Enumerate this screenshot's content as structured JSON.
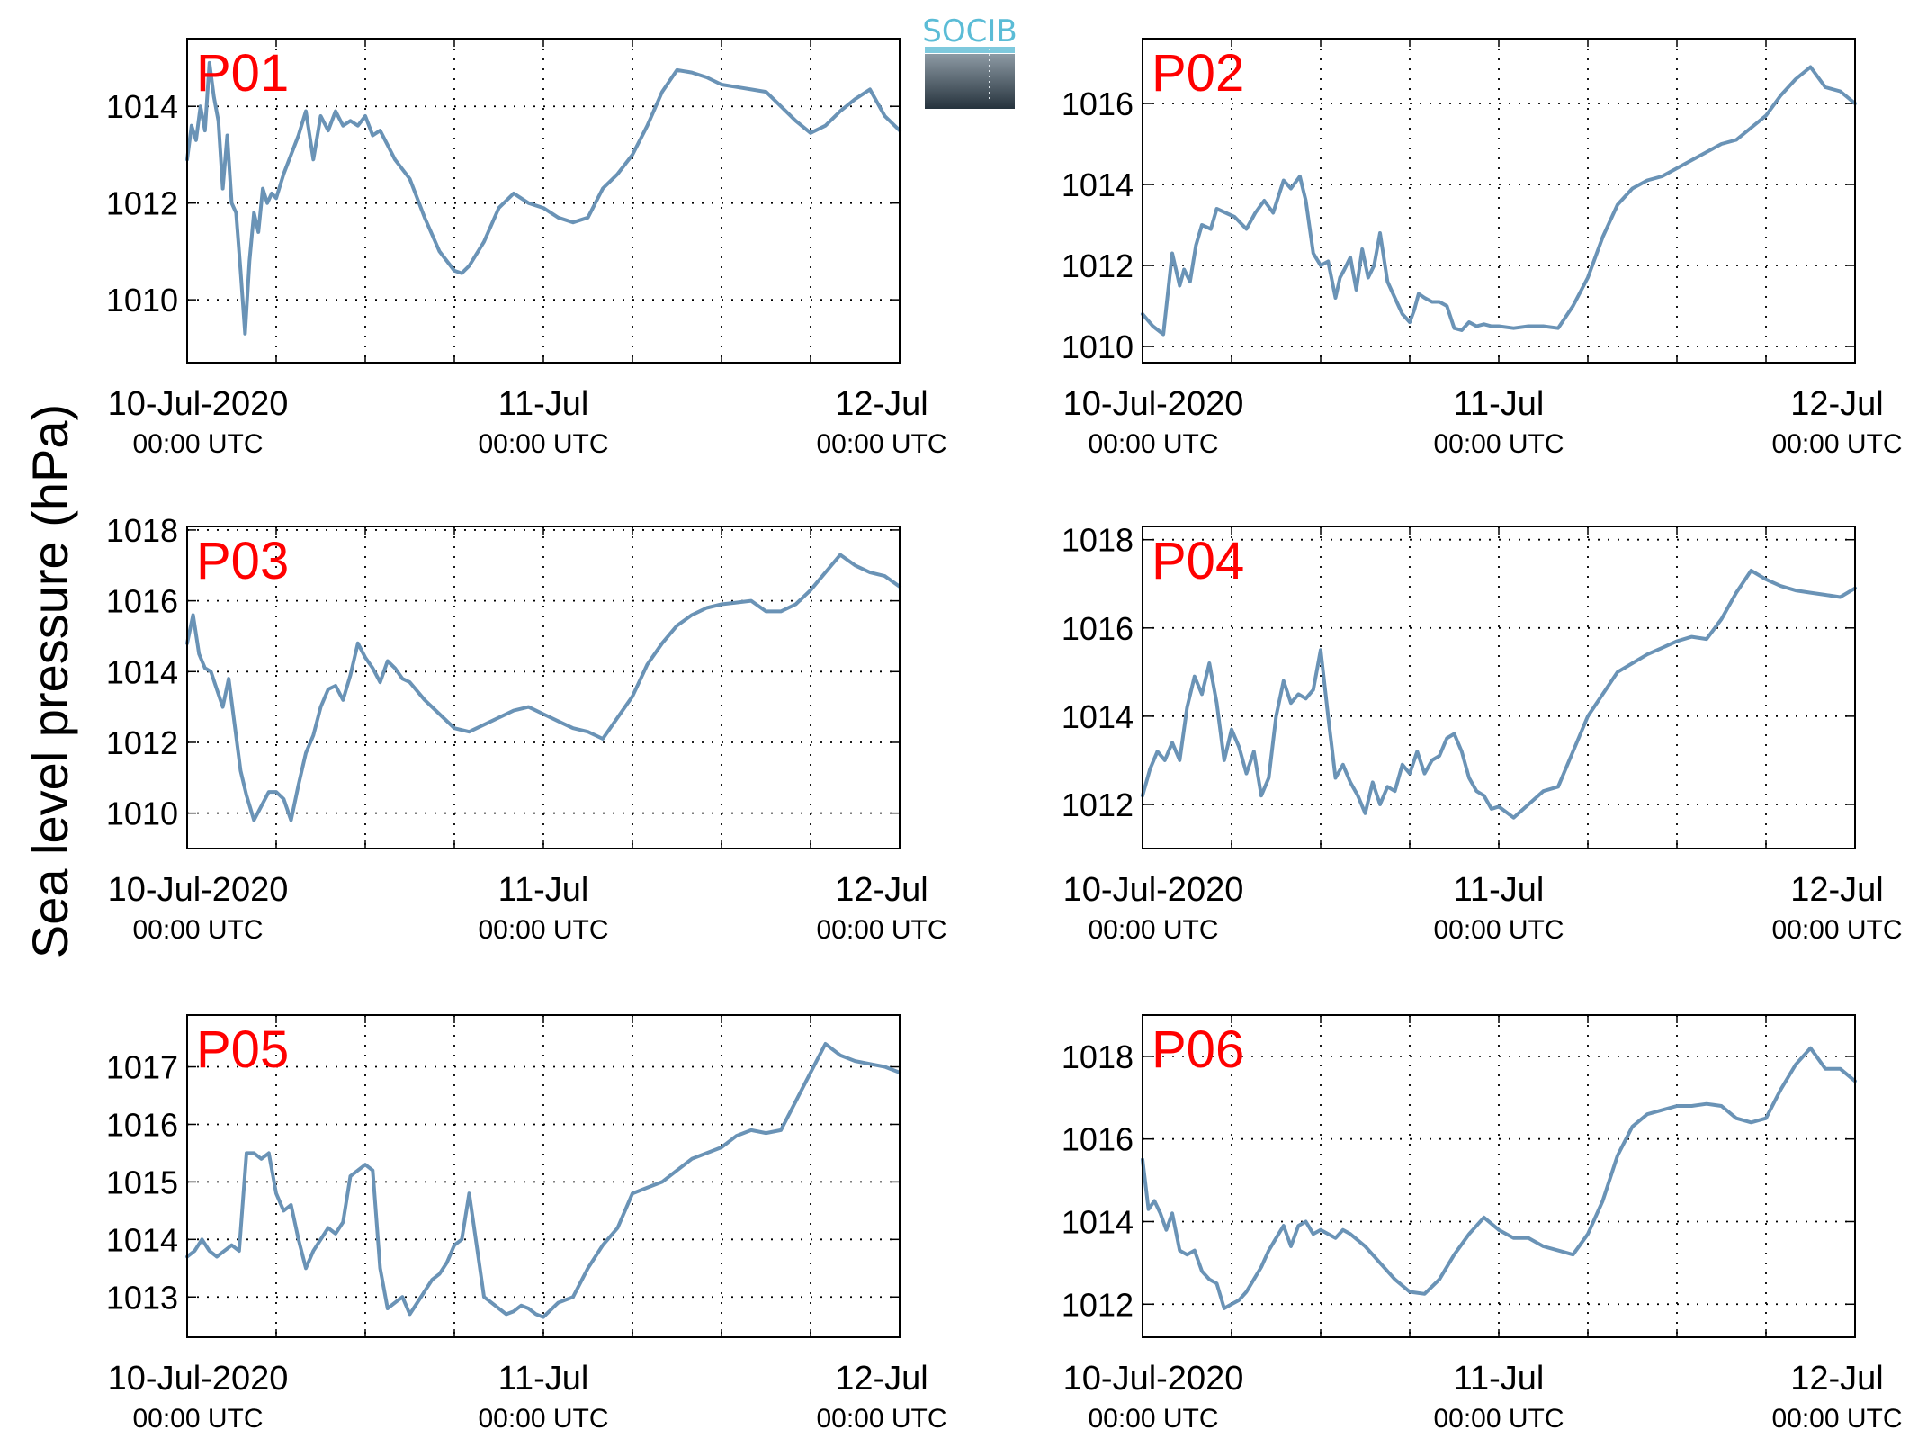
{
  "figure": {
    "ylabel": "Sea level pressure (hPa)",
    "logo_text": "SOCIB",
    "line_color": "#6a93b6",
    "panel_label_color": "#ff0000",
    "x_tick_labels": [
      {
        "date": "10-Jul-2020",
        "time": "00:00 UTC"
      },
      {
        "date": "11-Jul",
        "time": "00:00 UTC"
      },
      {
        "date": "12-Jul",
        "time": "00:00 UTC"
      }
    ]
  },
  "chart_data": [
    {
      "type": "line",
      "name": "P01",
      "x_unit": "hours since 10-Jul-2020 00:00 UTC",
      "xlim": [
        0,
        48
      ],
      "ylim": [
        1008.7,
        1015.4
      ],
      "yticks": [
        1010,
        1012,
        1014
      ],
      "x": [
        0,
        0.3,
        0.6,
        0.9,
        1.2,
        1.5,
        1.8,
        2.1,
        2.4,
        2.7,
        3.0,
        3.3,
        3.6,
        3.9,
        4.2,
        4.5,
        4.8,
        5.1,
        5.4,
        5.7,
        6.0,
        6.5,
        7.0,
        7.5,
        8.0,
        8.5,
        9.0,
        9.5,
        10.0,
        10.5,
        11.0,
        11.5,
        12.0,
        12.5,
        13.0,
        13.5,
        14.0,
        15.0,
        16.0,
        17.0,
        18.0,
        18.5,
        19.0,
        20.0,
        21.0,
        22.0,
        23.0,
        24.0,
        25.0,
        26.0,
        27.0,
        28.0,
        29.0,
        30.0,
        31.0,
        32.0,
        33.0,
        34.0,
        35.0,
        36.0,
        37.0,
        38.0,
        39.0,
        40.0,
        41.0,
        42.0,
        43.0,
        44.0,
        45.0,
        46.0,
        47.0,
        48.0
      ],
      "values": [
        1012.9,
        1013.6,
        1013.3,
        1014.0,
        1013.5,
        1014.9,
        1014.2,
        1013.7,
        1012.3,
        1013.4,
        1012.0,
        1011.8,
        1010.6,
        1009.3,
        1010.8,
        1011.8,
        1011.4,
        1012.3,
        1012.0,
        1012.2,
        1012.1,
        1012.6,
        1013.0,
        1013.4,
        1013.9,
        1012.9,
        1013.8,
        1013.5,
        1013.9,
        1013.6,
        1013.7,
        1013.6,
        1013.8,
        1013.4,
        1013.5,
        1013.2,
        1012.9,
        1012.5,
        1011.7,
        1011.0,
        1010.6,
        1010.55,
        1010.7,
        1011.2,
        1011.9,
        1012.2,
        1012.0,
        1011.9,
        1011.7,
        1011.6,
        1011.7,
        1012.3,
        1012.6,
        1013.0,
        1013.6,
        1014.3,
        1014.75,
        1014.7,
        1014.6,
        1014.45,
        1014.4,
        1014.35,
        1014.3,
        1014.0,
        1013.7,
        1013.45,
        1013.6,
        1013.9,
        1014.15,
        1014.35,
        1013.8,
        1013.5
      ]
    },
    {
      "type": "line",
      "name": "P02",
      "x_unit": "hours since 10-Jul-2020 00:00 UTC",
      "xlim": [
        0,
        48
      ],
      "ylim": [
        1009.6,
        1017.6
      ],
      "yticks": [
        1010,
        1012,
        1014,
        1016
      ],
      "x": [
        0,
        0.7,
        1.4,
        2.0,
        2.5,
        2.8,
        3.2,
        3.6,
        4.0,
        4.6,
        5.0,
        5.6,
        6.2,
        7.0,
        7.6,
        8.2,
        8.8,
        9.5,
        10.0,
        10.6,
        11.0,
        11.5,
        12.0,
        12.5,
        13.0,
        13.3,
        13.6,
        14.0,
        14.4,
        14.8,
        15.2,
        15.6,
        16.0,
        16.5,
        17.0,
        17.5,
        18.0,
        18.3,
        18.6,
        19.0,
        19.5,
        20.0,
        20.5,
        21.0,
        21.5,
        22.0,
        22.5,
        23.0,
        23.5,
        24.0,
        25.0,
        26.0,
        27.0,
        28.0,
        29.0,
        30.0,
        31.0,
        32.0,
        33.0,
        34.0,
        35.0,
        36.0,
        37.0,
        38.0,
        39.0,
        40.0,
        41.0,
        42.0,
        43.0,
        44.0,
        45.0,
        46.0,
        47.0,
        48.0
      ],
      "values": [
        1010.8,
        1010.5,
        1010.3,
        1012.3,
        1011.5,
        1011.9,
        1011.6,
        1012.5,
        1013.0,
        1012.9,
        1013.4,
        1013.3,
        1013.2,
        1012.9,
        1013.3,
        1013.6,
        1013.3,
        1014.1,
        1013.9,
        1014.2,
        1013.6,
        1012.3,
        1012.0,
        1012.1,
        1011.2,
        1011.7,
        1011.9,
        1012.2,
        1011.4,
        1012.4,
        1011.7,
        1012.0,
        1012.8,
        1011.6,
        1011.2,
        1010.8,
        1010.6,
        1010.9,
        1011.3,
        1011.2,
        1011.1,
        1011.1,
        1011.0,
        1010.45,
        1010.4,
        1010.6,
        1010.5,
        1010.55,
        1010.5,
        1010.5,
        1010.45,
        1010.5,
        1010.5,
        1010.45,
        1011.0,
        1011.7,
        1012.7,
        1013.5,
        1013.9,
        1014.1,
        1014.2,
        1014.4,
        1014.6,
        1014.8,
        1015.0,
        1015.1,
        1015.4,
        1015.7,
        1016.2,
        1016.6,
        1016.9,
        1016.4,
        1016.3,
        1016.0
      ]
    },
    {
      "type": "line",
      "name": "P03",
      "x_unit": "hours since 10-Jul-2020 00:00 UTC",
      "xlim": [
        0,
        48
      ],
      "ylim": [
        1009.0,
        1018.1
      ],
      "yticks": [
        1010,
        1012,
        1014,
        1016,
        1018
      ],
      "x": [
        0,
        0.4,
        0.8,
        1.2,
        1.6,
        2.0,
        2.4,
        2.8,
        3.2,
        3.6,
        4.0,
        4.5,
        5.0,
        5.5,
        6.0,
        6.5,
        7.0,
        7.5,
        8.0,
        8.5,
        9.0,
        9.5,
        10.0,
        10.5,
        11.0,
        11.5,
        12.0,
        12.5,
        13.0,
        13.5,
        14.0,
        14.5,
        15.0,
        16.0,
        17.0,
        18.0,
        19.0,
        20.0,
        21.0,
        22.0,
        23.0,
        24.0,
        25.0,
        26.0,
        27.0,
        28.0,
        29.0,
        30.0,
        31.0,
        32.0,
        33.0,
        34.0,
        35.0,
        36.0,
        37.0,
        38.0,
        39.0,
        40.0,
        41.0,
        42.0,
        43.0,
        44.0,
        45.0,
        46.0,
        47.0,
        48.0
      ],
      "values": [
        1014.8,
        1015.6,
        1014.5,
        1014.1,
        1014.0,
        1013.5,
        1013.0,
        1013.8,
        1012.5,
        1011.2,
        1010.5,
        1009.8,
        1010.2,
        1010.6,
        1010.6,
        1010.4,
        1009.8,
        1010.8,
        1011.7,
        1012.2,
        1013.0,
        1013.5,
        1013.6,
        1013.2,
        1013.9,
        1014.8,
        1014.4,
        1014.1,
        1013.7,
        1014.3,
        1014.1,
        1013.8,
        1013.7,
        1013.2,
        1012.8,
        1012.4,
        1012.3,
        1012.5,
        1012.7,
        1012.9,
        1013.0,
        1012.8,
        1012.6,
        1012.4,
        1012.3,
        1012.1,
        1012.7,
        1013.3,
        1014.2,
        1014.8,
        1015.3,
        1015.6,
        1015.8,
        1015.9,
        1015.95,
        1016.0,
        1015.7,
        1015.7,
        1015.9,
        1016.3,
        1016.8,
        1017.3,
        1017.0,
        1016.8,
        1016.7,
        1016.4
      ]
    },
    {
      "type": "line",
      "name": "P04",
      "x_unit": "hours since 10-Jul-2020 00:00 UTC",
      "xlim": [
        0,
        48
      ],
      "ylim": [
        1011.0,
        1018.3
      ],
      "yticks": [
        1012,
        1014,
        1016,
        1018
      ],
      "x": [
        0,
        0.5,
        1.0,
        1.5,
        2.0,
        2.5,
        3.0,
        3.5,
        4.0,
        4.5,
        5.0,
        5.5,
        6.0,
        6.5,
        7.0,
        7.5,
        8.0,
        8.5,
        9.0,
        9.5,
        10.0,
        10.5,
        11.0,
        11.5,
        12.0,
        12.5,
        13.0,
        13.5,
        14.0,
        14.5,
        15.0,
        15.5,
        16.0,
        16.5,
        17.0,
        17.5,
        18.0,
        18.5,
        19.0,
        19.5,
        20.0,
        20.5,
        21.0,
        21.5,
        22.0,
        22.5,
        23.0,
        23.5,
        24.0,
        25.0,
        26.0,
        27.0,
        28.0,
        29.0,
        30.0,
        31.0,
        32.0,
        33.0,
        34.0,
        35.0,
        36.0,
        37.0,
        38.0,
        39.0,
        40.0,
        41.0,
        42.0,
        43.0,
        44.0,
        45.0,
        46.0,
        47.0,
        48.0
      ],
      "values": [
        1012.2,
        1012.8,
        1013.2,
        1013.0,
        1013.4,
        1013.0,
        1014.2,
        1014.9,
        1014.5,
        1015.2,
        1014.3,
        1013.0,
        1013.7,
        1013.3,
        1012.7,
        1013.2,
        1012.2,
        1012.6,
        1014.0,
        1014.8,
        1014.3,
        1014.5,
        1014.4,
        1014.6,
        1015.5,
        1014.0,
        1012.6,
        1012.9,
        1012.5,
        1012.2,
        1011.8,
        1012.5,
        1012.0,
        1012.4,
        1012.3,
        1012.9,
        1012.7,
        1013.2,
        1012.7,
        1013.0,
        1013.1,
        1013.5,
        1013.6,
        1013.2,
        1012.6,
        1012.3,
        1012.2,
        1011.9,
        1011.95,
        1011.7,
        1012.0,
        1012.3,
        1012.4,
        1013.2,
        1014.0,
        1014.5,
        1015.0,
        1015.2,
        1015.4,
        1015.55,
        1015.7,
        1015.8,
        1015.75,
        1016.2,
        1016.8,
        1017.3,
        1017.1,
        1016.95,
        1016.85,
        1016.8,
        1016.75,
        1016.7,
        1016.9
      ]
    },
    {
      "type": "line",
      "name": "P05",
      "x_unit": "hours since 10-Jul-2020 00:00 UTC",
      "xlim": [
        0,
        48
      ],
      "ylim": [
        1012.3,
        1017.9
      ],
      "yticks": [
        1013,
        1014,
        1015,
        1016,
        1017
      ],
      "x": [
        0,
        0.5,
        1.0,
        1.5,
        2.0,
        2.5,
        3.0,
        3.5,
        4.0,
        4.5,
        5.0,
        5.5,
        6.0,
        6.5,
        7.0,
        7.5,
        8.0,
        8.5,
        9.0,
        9.5,
        10.0,
        10.5,
        11.0,
        11.5,
        12.0,
        12.5,
        13.0,
        13.5,
        14.0,
        14.5,
        15.0,
        15.5,
        16.0,
        16.5,
        17.0,
        17.5,
        18.0,
        18.5,
        19.0,
        19.5,
        20.0,
        20.5,
        21.0,
        21.5,
        22.0,
        22.5,
        23.0,
        23.5,
        24.0,
        25.0,
        26.0,
        27.0,
        28.0,
        29.0,
        30.0,
        31.0,
        32.0,
        33.0,
        34.0,
        35.0,
        36.0,
        37.0,
        38.0,
        39.0,
        40.0,
        41.0,
        42.0,
        43.0,
        44.0,
        45.0,
        46.0,
        47.0,
        48.0
      ],
      "values": [
        1013.7,
        1013.8,
        1014.0,
        1013.8,
        1013.7,
        1013.8,
        1013.9,
        1013.8,
        1015.5,
        1015.5,
        1015.4,
        1015.5,
        1014.8,
        1014.5,
        1014.6,
        1014.0,
        1013.5,
        1013.8,
        1014.0,
        1014.2,
        1014.1,
        1014.3,
        1015.1,
        1015.2,
        1015.3,
        1015.2,
        1013.5,
        1012.8,
        1012.9,
        1013.0,
        1012.7,
        1012.9,
        1013.1,
        1013.3,
        1013.4,
        1013.6,
        1013.9,
        1014.0,
        1014.8,
        1013.9,
        1013.0,
        1012.9,
        1012.8,
        1012.7,
        1012.75,
        1012.85,
        1012.8,
        1012.7,
        1012.65,
        1012.9,
        1013.0,
        1013.5,
        1013.9,
        1014.2,
        1014.8,
        1014.9,
        1015.0,
        1015.2,
        1015.4,
        1015.5,
        1015.6,
        1015.8,
        1015.9,
        1015.85,
        1015.9,
        1016.4,
        1016.9,
        1017.4,
        1017.2,
        1017.1,
        1017.05,
        1017.0,
        1016.9
      ]
    },
    {
      "type": "line",
      "name": "P06",
      "x_unit": "hours since 10-Jul-2020 00:00 UTC",
      "xlim": [
        0,
        48
      ],
      "ylim": [
        1011.2,
        1019.0
      ],
      "yticks": [
        1012,
        1014,
        1016,
        1018
      ],
      "x": [
        0,
        0.4,
        0.8,
        1.2,
        1.6,
        2.0,
        2.5,
        3.0,
        3.5,
        4.0,
        4.5,
        5.0,
        5.5,
        6.0,
        6.5,
        7.0,
        7.5,
        8.0,
        8.5,
        9.0,
        9.5,
        10.0,
        10.5,
        11.0,
        11.5,
        12.0,
        12.5,
        13.0,
        13.5,
        14.0,
        15.0,
        16.0,
        17.0,
        18.0,
        19.0,
        20.0,
        21.0,
        22.0,
        23.0,
        24.0,
        25.0,
        26.0,
        27.0,
        28.0,
        29.0,
        30.0,
        31.0,
        32.0,
        33.0,
        34.0,
        35.0,
        36.0,
        37.0,
        38.0,
        39.0,
        40.0,
        41.0,
        42.0,
        43.0,
        44.0,
        45.0,
        46.0,
        47.0,
        48.0
      ],
      "values": [
        1015.5,
        1014.3,
        1014.5,
        1014.2,
        1013.8,
        1014.2,
        1013.3,
        1013.2,
        1013.3,
        1012.8,
        1012.6,
        1012.5,
        1011.9,
        1012.0,
        1012.1,
        1012.3,
        1012.6,
        1012.9,
        1013.3,
        1013.6,
        1013.9,
        1013.4,
        1013.9,
        1014.0,
        1013.7,
        1013.8,
        1013.7,
        1013.6,
        1013.8,
        1013.7,
        1013.4,
        1013.0,
        1012.6,
        1012.3,
        1012.25,
        1012.6,
        1013.2,
        1013.7,
        1014.1,
        1013.8,
        1013.6,
        1013.6,
        1013.4,
        1013.3,
        1013.2,
        1013.7,
        1014.5,
        1015.6,
        1016.3,
        1016.6,
        1016.7,
        1016.8,
        1016.8,
        1016.85,
        1016.8,
        1016.5,
        1016.4,
        1016.5,
        1017.2,
        1017.8,
        1018.2,
        1017.7,
        1017.7,
        1017.4
      ]
    }
  ]
}
